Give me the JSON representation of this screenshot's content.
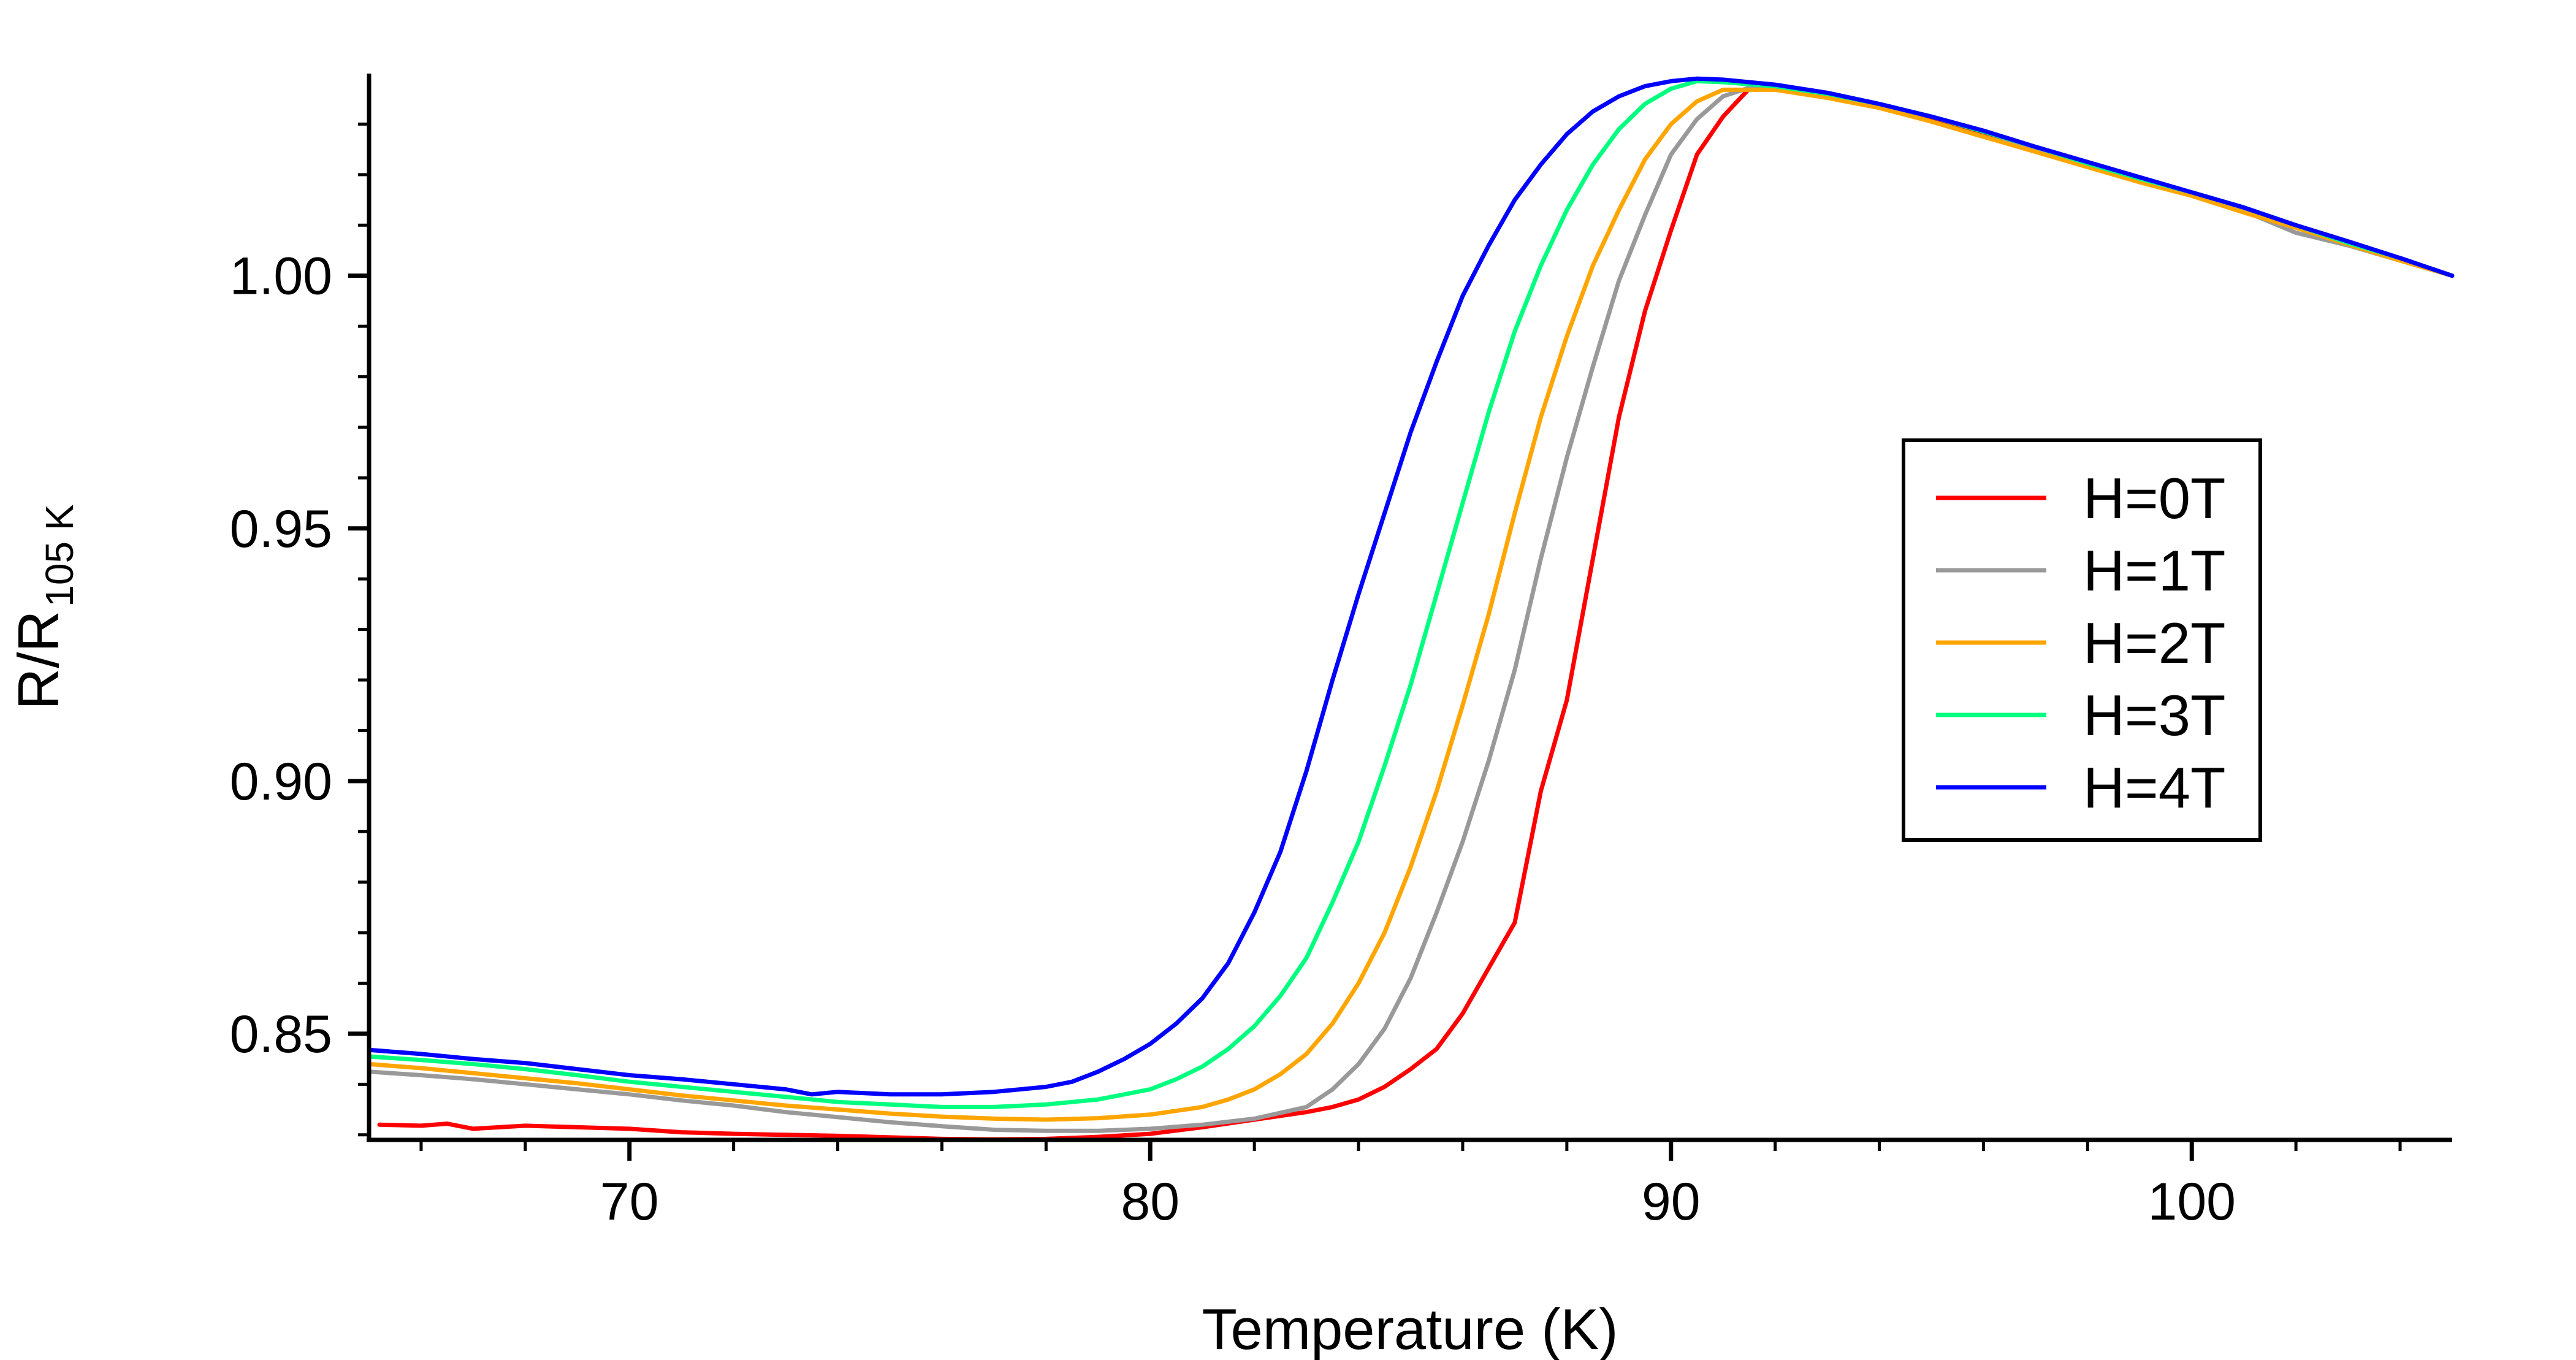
{
  "chart_data": {
    "type": "line",
    "title": "",
    "xlabel": "Temperature (K)",
    "ylabel": "R/R",
    "ylabel_subscript": "105 K",
    "xlim": [
      65,
      105
    ],
    "ylim": [
      0.829,
      1.04
    ],
    "x_ticks": [
      70,
      80,
      90,
      100
    ],
    "x_tick_labels": [
      "70",
      "80",
      "90",
      "100"
    ],
    "y_ticks": [
      0.85,
      0.9,
      0.95,
      1.0
    ],
    "y_tick_labels": [
      "0.85",
      "0.90",
      "0.95",
      "1.00"
    ],
    "grid": false,
    "legend_position": "right",
    "series": [
      {
        "name": "H=0T",
        "color": "#ff0000",
        "points": [
          [
            65.2,
            0.832
          ],
          [
            66,
            0.8318
          ],
          [
            66.5,
            0.8322
          ],
          [
            67,
            0.8312
          ],
          [
            68,
            0.8318
          ],
          [
            69,
            0.8315
          ],
          [
            70,
            0.8312
          ],
          [
            71,
            0.8305
          ],
          [
            72,
            0.8302
          ],
          [
            73,
            0.83
          ],
          [
            74,
            0.8298
          ],
          [
            75,
            0.8295
          ],
          [
            76,
            0.8292
          ],
          [
            77,
            0.8291
          ],
          [
            78,
            0.8292
          ],
          [
            79,
            0.8296
          ],
          [
            80,
            0.8302
          ],
          [
            81,
            0.8315
          ],
          [
            82,
            0.833
          ],
          [
            83,
            0.8345
          ],
          [
            83.5,
            0.8355
          ],
          [
            84,
            0.837
          ],
          [
            84.5,
            0.8395
          ],
          [
            85,
            0.843
          ],
          [
            85.5,
            0.847
          ],
          [
            86,
            0.854
          ],
          [
            86.5,
            0.863
          ],
          [
            87,
            0.872
          ],
          [
            87.5,
            0.898
          ],
          [
            88,
            0.916
          ],
          [
            88.5,
            0.944
          ],
          [
            89,
            0.972
          ],
          [
            89.5,
            0.993
          ],
          [
            90,
            1.009
          ],
          [
            90.5,
            1.024
          ],
          [
            91,
            1.0315
          ],
          [
            91.5,
            1.037
          ],
          [
            92,
            1.037
          ],
          [
            93,
            1.0355
          ],
          [
            94,
            1.0335
          ],
          [
            95,
            1.031
          ],
          [
            96,
            1.028
          ],
          [
            97,
            1.025
          ],
          [
            98,
            1.022
          ],
          [
            99,
            1.019
          ],
          [
            100,
            1.016
          ],
          [
            101,
            1.013
          ],
          [
            102,
            1.01
          ],
          [
            103,
            1.0065
          ],
          [
            104,
            1.0035
          ],
          [
            105,
            1.0
          ]
        ]
      },
      {
        "name": "H=1T",
        "color": "#999999",
        "points": [
          [
            65,
            0.8425
          ],
          [
            66,
            0.8418
          ],
          [
            67,
            0.841
          ],
          [
            68,
            0.84
          ],
          [
            69,
            0.839
          ],
          [
            70,
            0.838
          ],
          [
            71,
            0.8368
          ],
          [
            72,
            0.8358
          ],
          [
            73,
            0.8345
          ],
          [
            74,
            0.8335
          ],
          [
            75,
            0.8325
          ],
          [
            76,
            0.8317
          ],
          [
            77,
            0.831
          ],
          [
            78,
            0.8308
          ],
          [
            79,
            0.8308
          ],
          [
            80,
            0.8312
          ],
          [
            81,
            0.832
          ],
          [
            82,
            0.8332
          ],
          [
            83,
            0.8355
          ],
          [
            83.5,
            0.839
          ],
          [
            84,
            0.844
          ],
          [
            84.5,
            0.851
          ],
          [
            85,
            0.861
          ],
          [
            85.5,
            0.874
          ],
          [
            86,
            0.888
          ],
          [
            86.5,
            0.904
          ],
          [
            87,
            0.922
          ],
          [
            87.5,
            0.944
          ],
          [
            88,
            0.964
          ],
          [
            88.5,
            0.982
          ],
          [
            89,
            0.999
          ],
          [
            89.5,
            1.012
          ],
          [
            90,
            1.024
          ],
          [
            90.5,
            1.031
          ],
          [
            91,
            1.0355
          ],
          [
            91.5,
            1.0372
          ],
          [
            92,
            1.0368
          ],
          [
            93,
            1.0355
          ],
          [
            94,
            1.0335
          ],
          [
            95,
            1.0305
          ],
          [
            96,
            1.0275
          ],
          [
            97,
            1.0248
          ],
          [
            98,
            1.0218
          ],
          [
            99,
            1.019
          ],
          [
            100,
            1.016
          ],
          [
            101,
            1.0128
          ],
          [
            102,
            1.0085
          ],
          [
            103,
            1.006
          ],
          [
            104,
            1.003
          ],
          [
            105,
            1.0
          ]
        ]
      },
      {
        "name": "H=2T",
        "color": "#ffa500",
        "points": [
          [
            65,
            0.844
          ],
          [
            66,
            0.8432
          ],
          [
            67,
            0.8422
          ],
          [
            68,
            0.8412
          ],
          [
            69,
            0.8402
          ],
          [
            70,
            0.839
          ],
          [
            71,
            0.8378
          ],
          [
            72,
            0.8368
          ],
          [
            73,
            0.8358
          ],
          [
            74,
            0.835
          ],
          [
            75,
            0.8342
          ],
          [
            76,
            0.8336
          ],
          [
            77,
            0.8332
          ],
          [
            78,
            0.833
          ],
          [
            79,
            0.8333
          ],
          [
            80,
            0.834
          ],
          [
            81,
            0.8355
          ],
          [
            81.5,
            0.837
          ],
          [
            82,
            0.839
          ],
          [
            82.5,
            0.842
          ],
          [
            83,
            0.846
          ],
          [
            83.5,
            0.852
          ],
          [
            84,
            0.86
          ],
          [
            84.5,
            0.87
          ],
          [
            85,
            0.883
          ],
          [
            85.5,
            0.898
          ],
          [
            86,
            0.915
          ],
          [
            86.5,
            0.933
          ],
          [
            87,
            0.953
          ],
          [
            87.5,
            0.972
          ],
          [
            88,
            0.988
          ],
          [
            88.5,
            1.002
          ],
          [
            89,
            1.013
          ],
          [
            89.5,
            1.023
          ],
          [
            90,
            1.03
          ],
          [
            90.5,
            1.0345
          ],
          [
            91,
            1.0368
          ],
          [
            92,
            1.0368
          ],
          [
            93,
            1.0352
          ],
          [
            94,
            1.0332
          ],
          [
            95,
            1.0305
          ],
          [
            96,
            1.0275
          ],
          [
            97,
            1.0245
          ],
          [
            98,
            1.0215
          ],
          [
            99,
            1.0185
          ],
          [
            100,
            1.0158
          ],
          [
            101,
            1.0125
          ],
          [
            102,
            1.0095
          ],
          [
            103,
            1.0062
          ],
          [
            104,
            1.003
          ],
          [
            105,
            1.0
          ]
        ]
      },
      {
        "name": "H=3T",
        "color": "#00ff7f",
        "points": [
          [
            65,
            0.8455
          ],
          [
            66,
            0.8448
          ],
          [
            67,
            0.844
          ],
          [
            68,
            0.843
          ],
          [
            69,
            0.8418
          ],
          [
            70,
            0.8405
          ],
          [
            71,
            0.8395
          ],
          [
            72,
            0.8385
          ],
          [
            73,
            0.8375
          ],
          [
            74,
            0.8365
          ],
          [
            75,
            0.836
          ],
          [
            76,
            0.8355
          ],
          [
            77,
            0.8355
          ],
          [
            78,
            0.836
          ],
          [
            79,
            0.837
          ],
          [
            80,
            0.839
          ],
          [
            80.5,
            0.841
          ],
          [
            81,
            0.8435
          ],
          [
            81.5,
            0.847
          ],
          [
            82,
            0.8515
          ],
          [
            82.5,
            0.8575
          ],
          [
            83,
            0.865
          ],
          [
            83.5,
            0.876
          ],
          [
            84,
            0.888
          ],
          [
            84.5,
            0.903
          ],
          [
            85,
            0.919
          ],
          [
            85.5,
            0.937
          ],
          [
            86,
            0.955
          ],
          [
            86.5,
            0.973
          ],
          [
            87,
            0.989
          ],
          [
            87.5,
            1.002
          ],
          [
            88,
            1.013
          ],
          [
            88.5,
            1.022
          ],
          [
            89,
            1.029
          ],
          [
            89.5,
            1.034
          ],
          [
            90,
            1.037
          ],
          [
            90.5,
            1.0385
          ],
          [
            91,
            1.0383
          ],
          [
            92,
            1.0375
          ],
          [
            93,
            1.036
          ],
          [
            94,
            1.034
          ],
          [
            95,
            1.0315
          ],
          [
            96,
            1.0285
          ],
          [
            97,
            1.0255
          ],
          [
            98,
            1.0222
          ],
          [
            99,
            1.0192
          ],
          [
            100,
            1.0165
          ],
          [
            101,
            1.0135
          ],
          [
            102,
            1.01
          ],
          [
            103,
            1.0065
          ],
          [
            104,
            1.0035
          ],
          [
            105,
            1.0
          ]
        ]
      },
      {
        "name": "H=4T",
        "color": "#0000ff",
        "points": [
          [
            65,
            0.8468
          ],
          [
            66,
            0.846
          ],
          [
            67,
            0.845
          ],
          [
            68,
            0.8442
          ],
          [
            69,
            0.843
          ],
          [
            70,
            0.8418
          ],
          [
            71,
            0.841
          ],
          [
            72,
            0.84
          ],
          [
            73,
            0.839
          ],
          [
            73.5,
            0.838
          ],
          [
            74,
            0.8385
          ],
          [
            75,
            0.838
          ],
          [
            76,
            0.838
          ],
          [
            77,
            0.8385
          ],
          [
            78,
            0.8395
          ],
          [
            78.5,
            0.8405
          ],
          [
            79,
            0.8425
          ],
          [
            79.5,
            0.845
          ],
          [
            80,
            0.848
          ],
          [
            80.5,
            0.852
          ],
          [
            81,
            0.857
          ],
          [
            81.5,
            0.864
          ],
          [
            82,
            0.874
          ],
          [
            82.5,
            0.886
          ],
          [
            83,
            0.902
          ],
          [
            83.5,
            0.92
          ],
          [
            84,
            0.937
          ],
          [
            84.5,
            0.953
          ],
          [
            85,
            0.969
          ],
          [
            85.5,
            0.983
          ],
          [
            86,
            0.996
          ],
          [
            86.5,
            1.006
          ],
          [
            87,
            1.015
          ],
          [
            87.5,
            1.022
          ],
          [
            88,
            1.028
          ],
          [
            88.5,
            1.0325
          ],
          [
            89,
            1.0355
          ],
          [
            89.5,
            1.0375
          ],
          [
            90,
            1.0385
          ],
          [
            90.5,
            1.039
          ],
          [
            91,
            1.0388
          ],
          [
            92,
            1.0378
          ],
          [
            93,
            1.0362
          ],
          [
            94,
            1.034
          ],
          [
            95,
            1.0315
          ],
          [
            96,
            1.0287
          ],
          [
            97,
            1.0255
          ],
          [
            98,
            1.0225
          ],
          [
            99,
            1.0195
          ],
          [
            100,
            1.0165
          ],
          [
            101,
            1.0135
          ],
          [
            102,
            1.01
          ],
          [
            103,
            1.0068
          ],
          [
            104,
            1.0035
          ],
          [
            105,
            1.0
          ]
        ]
      }
    ]
  }
}
